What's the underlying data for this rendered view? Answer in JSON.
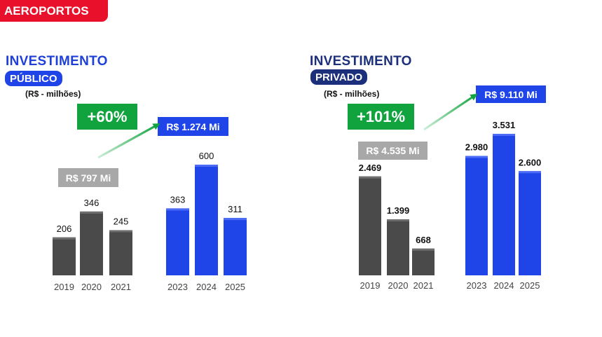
{
  "header": {
    "tag_label": "AEROPORTOS"
  },
  "colors": {
    "past": "#4a4a4a",
    "future": "#1f44e8",
    "growth": "#10a33e",
    "accent_red": "#e8102a"
  },
  "panels": {
    "public": {
      "title": "INVESTIMENTO",
      "subtitle": "PÚBLICO",
      "unit": "(R$ - milhões)",
      "growth": "+60%",
      "total_before": "R$ 797 Mi",
      "total_after": "R$ 1.274 Mi"
    },
    "private": {
      "title": "INVESTIMENTO",
      "subtitle": "PRIVADO",
      "unit": "(R$ - milhões)",
      "growth": "+101%",
      "total_before": "R$ 4.535 Mi",
      "total_after": "R$ 9.110 Mi"
    }
  },
  "chart_data": [
    {
      "type": "bar",
      "title": "INVESTIMENTO PÚBLICO",
      "unit": "(R$ - milhões)",
      "categories": [
        "2019",
        "2020",
        "2021",
        "2023",
        "2024",
        "2025"
      ],
      "values": [
        206,
        346,
        245,
        363,
        600,
        311
      ],
      "value_labels": [
        "206",
        "346",
        "245",
        "363",
        "600",
        "311"
      ],
      "groups": [
        "past",
        "past",
        "past",
        "future",
        "future",
        "future"
      ],
      "ylim": [
        0,
        600
      ],
      "grid": false
    },
    {
      "type": "bar",
      "title": "INVESTIMENTO PRIVADO",
      "unit": "(R$ - milhões)",
      "categories": [
        "2019",
        "2020",
        "2021",
        "2023",
        "2024",
        "2025"
      ],
      "values": [
        2469,
        1399,
        668,
        2980,
        3531,
        2600
      ],
      "value_labels": [
        "2.469",
        "1.399",
        "668",
        "2.980",
        "3.531",
        "2.600"
      ],
      "groups": [
        "past",
        "past",
        "past",
        "future",
        "future",
        "future"
      ],
      "ylim": [
        0,
        3531
      ],
      "grid": false
    }
  ]
}
